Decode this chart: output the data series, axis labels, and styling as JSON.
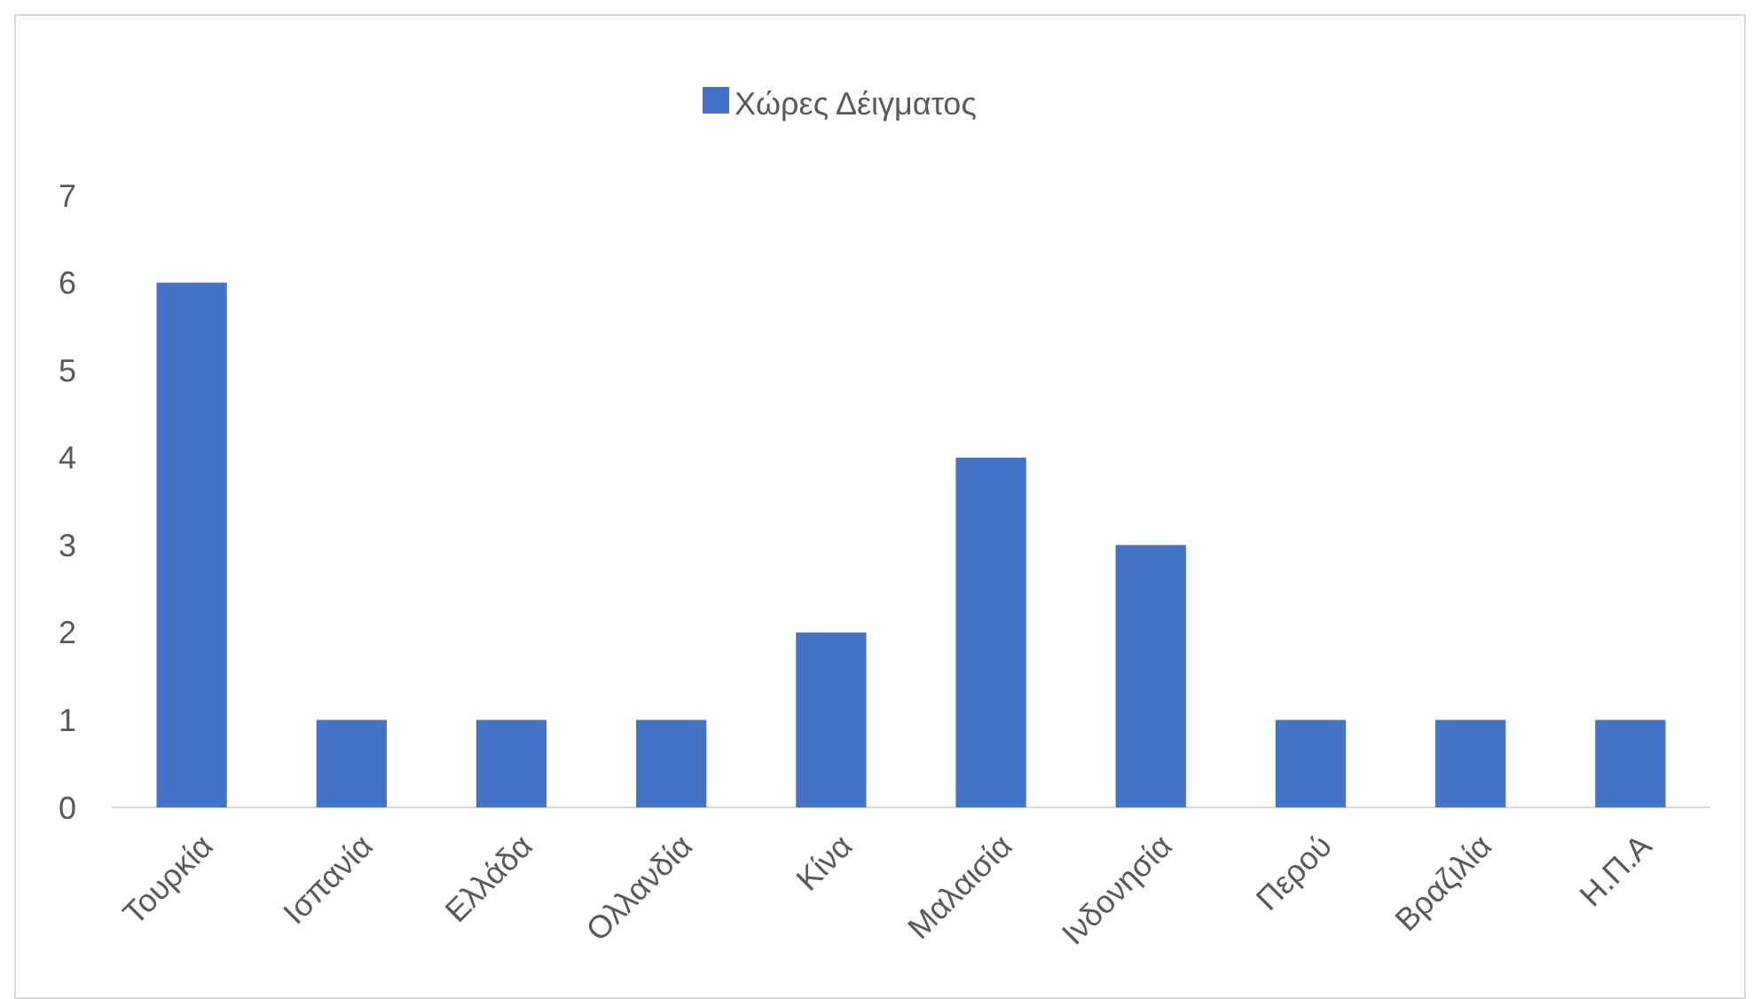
{
  "chart_data": {
    "type": "bar",
    "categories": [
      "Τουρκία",
      "Ισπανία",
      "Ελλάδα",
      "Ολλανδία",
      "Κίνα",
      "Μαλαισία",
      "Ινδονησία",
      "Περού",
      "Βραζιλία",
      "Η.Π.Α"
    ],
    "series": [
      {
        "name": "Χώρες Δέιγματος",
        "color": "#4472c4",
        "values": [
          6,
          1,
          1,
          1,
          2,
          4,
          3,
          1,
          1,
          1
        ]
      }
    ],
    "ylim": [
      0,
      7
    ],
    "yticks": [
      0,
      1,
      2,
      3,
      4,
      5,
      6,
      7
    ],
    "grid": false,
    "legend": "top"
  }
}
